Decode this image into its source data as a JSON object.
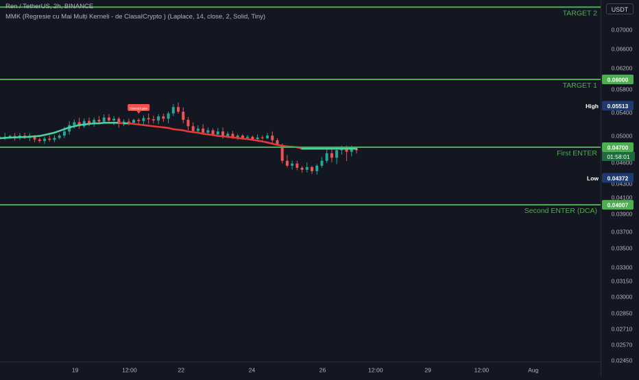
{
  "header": {
    "symbol_line": "Ren / TetherUS, 2h, BINANCE",
    "indicator_line": "MMK (Regresie cu Mai Mulți Kerneli - de ClasaICrypto ) (Laplace, 14, close, 2, Solid, Tiny)"
  },
  "currency_button": "USDT",
  "colors": {
    "background": "#131722",
    "up": "#26a69a",
    "down": "#ef5350",
    "level_line": "#4caf50",
    "kernel_up": "#4dd0a0",
    "kernel_down": "#e53935"
  },
  "chart_data": {
    "type": "candlestick",
    "y_axis": {
      "min": 0.024,
      "max": 0.0725,
      "tick_labels": [
        "0.07000",
        "0.06600",
        "0.06200",
        "0.05800",
        "0.05400",
        "0.05000",
        "0.04600",
        "0.04300",
        "0.04100",
        "0.03900",
        "0.03700",
        "0.03500",
        "0.03300",
        "0.03150",
        "0.03000",
        "0.02850",
        "0.02710",
        "0.02570",
        "0.02450"
      ]
    },
    "x_axis": {
      "tick_labels": [
        "19",
        "12:00",
        "22",
        "24",
        "26",
        "12:00",
        "29",
        "12:00",
        "Aug"
      ]
    },
    "levels": [
      {
        "label": "TARGET 2",
        "value": 0.0719,
        "tag": ""
      },
      {
        "label": "TARGET 1",
        "value": 0.06,
        "tag": "0.06000"
      },
      {
        "label": "First ENTER",
        "value": 0.047,
        "tag": "0.04700"
      },
      {
        "label": "Second ENTER (DCA)",
        "value": 0.04007,
        "tag": "0.04007"
      }
    ],
    "markers": [
      {
        "label": "High",
        "value": 0.05513,
        "tag": "0.05513"
      },
      {
        "label": "Low",
        "value": 0.04372,
        "tag": "0.04372"
      }
    ],
    "countdown": "01:58:01",
    "signal_label": "ClasaICrypto",
    "price_path": [
      0.0493,
      0.0497,
      0.0499,
      0.0495,
      0.05,
      0.0494,
      0.0498,
      0.049,
      0.0486,
      0.0492,
      0.0489,
      0.0494,
      0.05,
      0.0507,
      0.0518,
      0.0523,
      0.0516,
      0.0525,
      0.052,
      0.0527,
      0.0524,
      0.0531,
      0.0526,
      0.0529,
      0.052,
      0.0524,
      0.0522,
      0.0527,
      0.0525,
      0.053,
      0.0528,
      0.0526,
      0.0533,
      0.0529,
      0.0538,
      0.0549,
      0.0541,
      0.0527,
      0.0516,
      0.0508,
      0.0512,
      0.0505,
      0.0509,
      0.0502,
      0.0507,
      0.0499,
      0.0503,
      0.0496,
      0.05,
      0.0494,
      0.0497,
      0.0491,
      0.0495,
      0.0493,
      0.05,
      0.0488,
      0.0476,
      0.0461,
      0.0455,
      0.0458,
      0.0452,
      0.0449,
      0.0453,
      0.0447,
      0.0455,
      0.0461,
      0.0466,
      0.0463,
      0.0468,
      0.047,
      0.0467,
      0.0469,
      0.0468
    ],
    "kernel_path": [
      0.0493,
      0.0494,
      0.0495,
      0.0495,
      0.0496,
      0.0496,
      0.0497,
      0.0498,
      0.0499,
      0.0501,
      0.0503,
      0.0505,
      0.0508,
      0.0511,
      0.0514,
      0.0516,
      0.0518,
      0.0519,
      0.052,
      0.0521,
      0.0521,
      0.0522,
      0.0522,
      0.0522,
      0.0522,
      0.0521,
      0.0521,
      0.052,
      0.0519,
      0.0518,
      0.0517,
      0.0516,
      0.0515,
      0.0514,
      0.0513,
      0.0511,
      0.051,
      0.0509,
      0.0507,
      0.0506,
      0.0505,
      0.0503,
      0.0502,
      0.0501,
      0.0499,
      0.0498,
      0.0497,
      0.0495,
      0.0494,
      0.0492,
      0.0491,
      0.0489,
      0.0487,
      0.0485,
      0.0482,
      0.0479,
      0.0476,
      0.0474,
      0.0472,
      0.0471,
      0.047,
      0.0469,
      0.0469,
      0.0469,
      0.0469,
      0.0469,
      0.0469,
      0.0469,
      0.0469,
      0.0469,
      0.0469,
      0.0469,
      0.0469
    ]
  }
}
